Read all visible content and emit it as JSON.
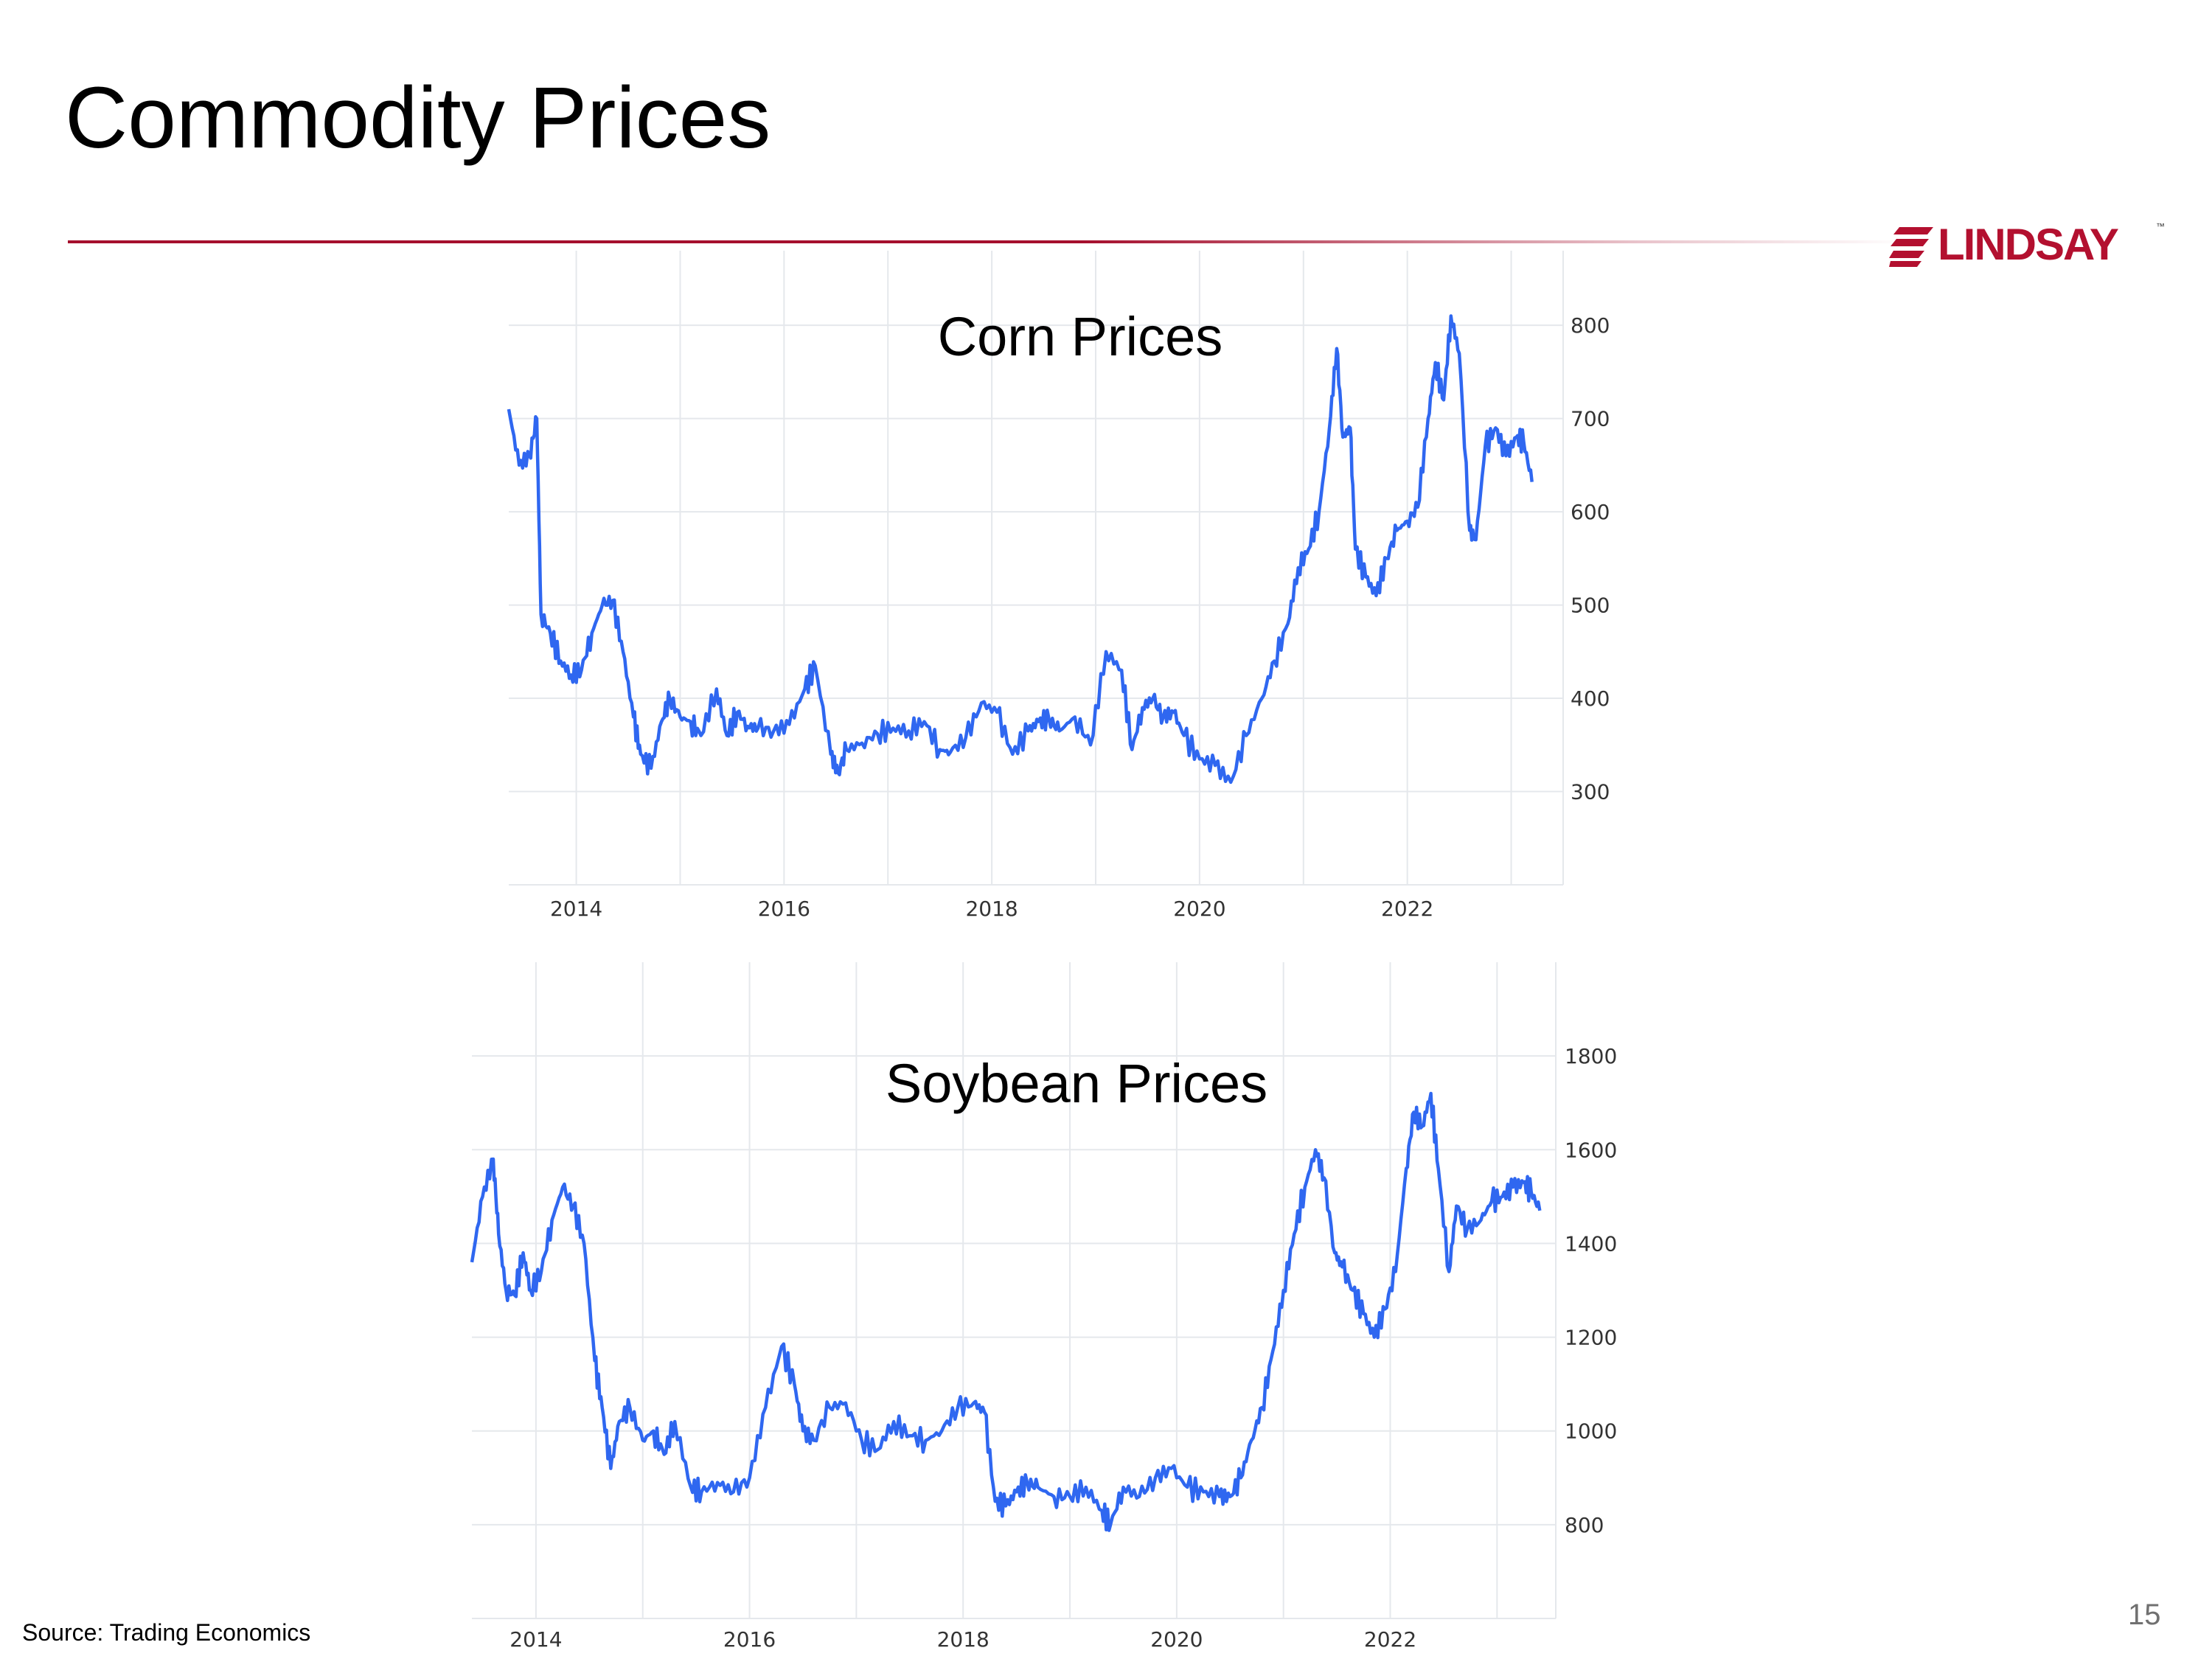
{
  "slide": {
    "title": "Commodity Prices",
    "source": "Source: Trading Economics",
    "page_number": "15",
    "accent_color": "#a50f2d"
  },
  "logo": {
    "text": "LINDSAY",
    "trademark": "™",
    "color": "#b3102f"
  },
  "chart_data": [
    {
      "type": "line",
      "title": "Corn Prices",
      "xlabel": "",
      "ylabel": "",
      "xlim": [
        2013.35,
        2023.5
      ],
      "ylim": [
        200,
        880
      ],
      "y_ticks": [
        300,
        400,
        500,
        600,
        700,
        800
      ],
      "x_ticks": [
        2014,
        2016,
        2018,
        2020,
        2022
      ],
      "y_axis_position": "right",
      "grid": true,
      "series": [
        {
          "name": "Corn",
          "color": "#2f67f0",
          "x": [
            2013.35,
            2013.45,
            2013.55,
            2013.62,
            2013.66,
            2013.75,
            2013.85,
            2013.95,
            2014.05,
            2014.15,
            2014.25,
            2014.35,
            2014.45,
            2014.55,
            2014.62,
            2014.72,
            2014.82,
            2014.9,
            2015.0,
            2015.1,
            2015.2,
            2015.35,
            2015.45,
            2015.55,
            2015.65,
            2015.75,
            2015.9,
            2016.05,
            2016.2,
            2016.3,
            2016.45,
            2016.52,
            2016.6,
            2016.75,
            2016.9,
            2017.05,
            2017.2,
            2017.35,
            2017.5,
            2017.6,
            2017.75,
            2017.9,
            2018.05,
            2018.2,
            2018.35,
            2018.45,
            2018.55,
            2018.65,
            2018.8,
            2018.95,
            2019.1,
            2019.25,
            2019.35,
            2019.45,
            2019.55,
            2019.65,
            2019.75,
            2019.85,
            2020.0,
            2020.15,
            2020.3,
            2020.45,
            2020.6,
            2020.72,
            2020.85,
            2020.95,
            2021.05,
            2021.15,
            2021.25,
            2021.32,
            2021.38,
            2021.45,
            2021.5,
            2021.6,
            2021.7,
            2021.8,
            2021.9,
            2022.0,
            2022.1,
            2022.2,
            2022.27,
            2022.35,
            2022.42,
            2022.5,
            2022.6,
            2022.66,
            2022.75,
            2022.85,
            2022.95,
            2023.05,
            2023.12,
            2023.2
          ],
          "values": [
            710,
            650,
            660,
            700,
            490,
            470,
            440,
            425,
            430,
            470,
            500,
            505,
            450,
            380,
            340,
            325,
            375,
            400,
            380,
            375,
            360,
            410,
            360,
            385,
            370,
            368,
            365,
            372,
            410,
            435,
            340,
            320,
            345,
            352,
            362,
            368,
            365,
            375,
            345,
            342,
            358,
            395,
            385,
            340,
            365,
            375,
            378,
            365,
            380,
            350,
            450,
            430,
            345,
            390,
            400,
            380,
            385,
            360,
            335,
            328,
            310,
            360,
            400,
            440,
            480,
            540,
            560,
            600,
            690,
            775,
            680,
            690,
            560,
            530,
            510,
            550,
            580,
            590,
            605,
            700,
            760,
            720,
            810,
            770,
            580,
            570,
            670,
            690,
            660,
            680,
            675,
            632
          ]
        }
      ]
    },
    {
      "type": "line",
      "title": "Soybean Prices",
      "xlabel": "",
      "ylabel": "",
      "xlim": [
        2013.4,
        2023.55
      ],
      "ylim": [
        600,
        2000
      ],
      "y_ticks": [
        800,
        1000,
        1200,
        1400,
        1600,
        1800
      ],
      "x_ticks": [
        2014,
        2016,
        2018,
        2020,
        2022
      ],
      "y_axis_position": "right",
      "grid": true,
      "series": [
        {
          "name": "Soybean",
          "color": "#2f67f0",
          "x": [
            2013.4,
            2013.5,
            2013.6,
            2013.65,
            2013.72,
            2013.8,
            2013.88,
            2013.95,
            2014.05,
            2014.15,
            2014.25,
            2014.35,
            2014.45,
            2014.55,
            2014.62,
            2014.7,
            2014.78,
            2014.88,
            2015.0,
            2015.1,
            2015.2,
            2015.3,
            2015.45,
            2015.55,
            2015.7,
            2015.85,
            2016.0,
            2016.15,
            2016.3,
            2016.42,
            2016.5,
            2016.6,
            2016.75,
            2016.9,
            2017.05,
            2017.2,
            2017.35,
            2017.5,
            2017.65,
            2017.8,
            2017.95,
            2018.1,
            2018.2,
            2018.3,
            2018.4,
            2018.5,
            2018.6,
            2018.7,
            2018.85,
            2019.0,
            2019.15,
            2019.3,
            2019.38,
            2019.5,
            2019.65,
            2019.8,
            2019.95,
            2020.1,
            2020.25,
            2020.4,
            2020.5,
            2020.6,
            2020.7,
            2020.8,
            2020.9,
            2021.0,
            2021.1,
            2021.2,
            2021.3,
            2021.38,
            2021.48,
            2021.55,
            2021.65,
            2021.75,
            2021.85,
            2021.95,
            2022.05,
            2022.15,
            2022.22,
            2022.3,
            2022.38,
            2022.45,
            2022.55,
            2022.62,
            2022.72,
            2022.85,
            2022.95,
            2023.05,
            2023.15,
            2023.25,
            2023.32,
            2023.4
          ],
          "values": [
            1360,
            1500,
            1580,
            1420,
            1300,
            1290,
            1380,
            1300,
            1340,
            1450,
            1520,
            1480,
            1400,
            1150,
            1050,
            920,
            1020,
            1050,
            980,
            1000,
            950,
            1020,
            880,
            870,
            890,
            870,
            900,
            1050,
            1180,
            1100,
            1000,
            980,
            1050,
            1060,
            980,
            960,
            1020,
            990,
            980,
            1000,
            1050,
            1060,
            1040,
            850,
            840,
            870,
            890,
            880,
            860,
            860,
            880,
            830,
            800,
            880,
            860,
            900,
            920,
            880,
            870,
            860,
            860,
            900,
            980,
            1050,
            1170,
            1300,
            1420,
            1520,
            1600,
            1540,
            1380,
            1350,
            1300,
            1250,
            1200,
            1260,
            1340,
            1560,
            1680,
            1650,
            1720,
            1560,
            1340,
            1480,
            1430,
            1450,
            1490,
            1500,
            1520,
            1530,
            1510,
            1470
          ]
        }
      ]
    }
  ]
}
